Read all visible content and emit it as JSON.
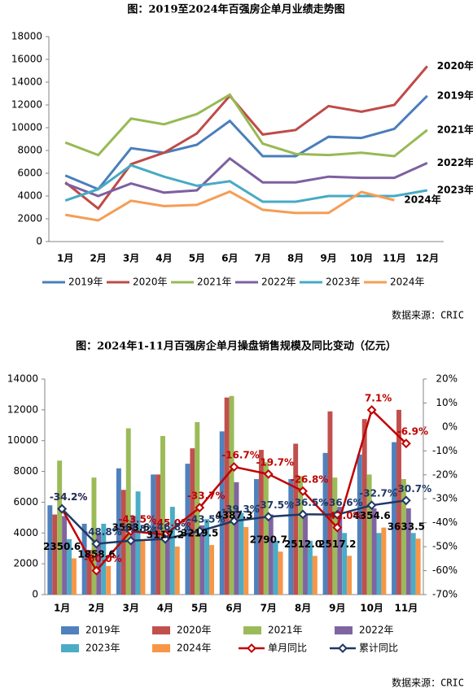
{
  "chart_data": [
    {
      "type": "line",
      "title": "图：2019至2024年百强房企单月业绩走势图",
      "source": "数据来源：CRIC",
      "categories": [
        "1月",
        "2月",
        "3月",
        "4月",
        "5月",
        "6月",
        "7月",
        "8月",
        "9月",
        "10月",
        "11月",
        "12月"
      ],
      "ylim": [
        0,
        18000
      ],
      "yticks": [
        0,
        2000,
        4000,
        6000,
        8000,
        10000,
        12000,
        14000,
        16000,
        18000
      ],
      "series": [
        {
          "name": "2019年",
          "color": "#4a7ebb",
          "values": [
            5800,
            4600,
            8200,
            7800,
            8500,
            10600,
            7500,
            7500,
            9200,
            9100,
            9900,
            12800
          ]
        },
        {
          "name": "2020年",
          "color": "#be4b48",
          "values": [
            5200,
            2900,
            6800,
            7800,
            9500,
            12800,
            9400,
            9800,
            11900,
            11400,
            12000,
            15400
          ]
        },
        {
          "name": "2021年",
          "color": "#98b954",
          "values": [
            8700,
            7600,
            10800,
            10300,
            11200,
            12900,
            8600,
            7700,
            7600,
            7800,
            7500,
            9800
          ]
        },
        {
          "name": "2022年",
          "color": "#7d60a0",
          "values": [
            5100,
            4000,
            5100,
            4300,
            4500,
            7300,
            5200,
            5200,
            5700,
            5600,
            5600,
            6900
          ]
        },
        {
          "name": "2023年",
          "color": "#46aac5",
          "values": [
            3600,
            4600,
            6700,
            5700,
            4900,
            5300,
            3500,
            3500,
            4000,
            4000,
            4000,
            4500
          ]
        },
        {
          "name": "2024年",
          "color": "#f59d56",
          "values": [
            2350.6,
            1858.6,
            3583.6,
            3117.2,
            3219.5,
            4387.3,
            2790.7,
            2512.0,
            2517.2,
            4354.6,
            3633.5,
            null
          ]
        }
      ]
    },
    {
      "type": "bar",
      "title": "图：2024年1-11月百强房企单月操盘销售规模及同比变动（亿元）",
      "source": "数据来源：CRIC",
      "categories": [
        "1月",
        "2月",
        "3月",
        "4月",
        "5月",
        "6月",
        "7月",
        "8月",
        "9月",
        "10月",
        "11月"
      ],
      "ylim": [
        0,
        14000
      ],
      "yticks": [
        0,
        2000,
        4000,
        6000,
        8000,
        10000,
        12000,
        14000
      ],
      "y2lim": [
        -70,
        20
      ],
      "y2ticks": [
        {
          "value": -70,
          "label": "-70%"
        },
        {
          "value": -60,
          "label": "-60%"
        },
        {
          "value": -50,
          "label": "-50%"
        },
        {
          "value": -40,
          "label": "-40%"
        },
        {
          "value": -30,
          "label": "-30%"
        },
        {
          "value": -20,
          "label": "-20%"
        },
        {
          "value": -10,
          "label": "-10%"
        },
        {
          "value": 0,
          "label": "0%"
        },
        {
          "value": 10,
          "label": "10%"
        },
        {
          "value": 20,
          "label": "20%"
        }
      ],
      "series": [
        {
          "name": "2019年",
          "color": "#4f81bd",
          "values": [
            5800,
            4600,
            8200,
            7800,
            8500,
            10600,
            7500,
            7500,
            9200,
            9100,
            9900
          ]
        },
        {
          "name": "2020年",
          "color": "#c0504d",
          "values": [
            5200,
            2900,
            6800,
            7800,
            9500,
            12800,
            9400,
            9800,
            11900,
            11400,
            12000
          ]
        },
        {
          "name": "2021年",
          "color": "#9bbb59",
          "values": [
            8700,
            7600,
            10800,
            10300,
            11200,
            12900,
            8600,
            7700,
            7600,
            7800,
            7500
          ]
        },
        {
          "name": "2022年",
          "color": "#8064a2",
          "values": [
            5100,
            4000,
            5100,
            4300,
            4500,
            7300,
            5200,
            5200,
            5700,
            5600,
            5600
          ]
        },
        {
          "name": "2023年",
          "color": "#4bacc6",
          "values": [
            3600,
            4600,
            6700,
            5700,
            4900,
            5300,
            3500,
            3500,
            4000,
            4000,
            4000
          ]
        },
        {
          "name": "2024年",
          "color": "#f79646",
          "values": [
            2350.6,
            1858.6,
            3583.6,
            3117.2,
            3219.5,
            4387.3,
            2790.7,
            2512.0,
            2517.2,
            4354.6,
            3633.5
          ],
          "value_labels": [
            "2350.6",
            "1858.6",
            "3583.6",
            "3117.2",
            "3219.5",
            "4387.3",
            "2790.7",
            "2512.0",
            "2517.2",
            "4354.6",
            "3633.5"
          ]
        },
        {
          "name": "单月同比",
          "color": "#c00000",
          "type": "line",
          "axis": "y2",
          "values": [
            -34.2,
            -60.0,
            -43.5,
            -45.0,
            -33.7,
            -16.7,
            -19.7,
            -26.8,
            -42.0,
            7.1,
            -6.9
          ],
          "value_labels": [
            "-34.2%",
            "-60.0%",
            "-43.5%",
            "-45.0%",
            "-33.7%",
            "-16.7%",
            "-19.7%",
            "-26.8%",
            "-42.0%",
            "7.1%",
            "-6.9%"
          ]
        },
        {
          "name": "累计同比",
          "color": "#1f3864",
          "type": "line",
          "axis": "y2",
          "values": [
            -34.2,
            -48.8,
            -47.5,
            -46.8,
            -43.5,
            -39.3,
            -37.5,
            -36.5,
            -36.6,
            -32.7,
            -30.7
          ],
          "value_labels": [
            "-34.2%",
            "-48.8%",
            "-47.5%",
            "-46.8%",
            "-43.5%",
            "-39.3%",
            "-37.5%",
            "-36.5%",
            "-36.6%",
            "-32.7%",
            "-30.7%"
          ]
        }
      ]
    }
  ]
}
